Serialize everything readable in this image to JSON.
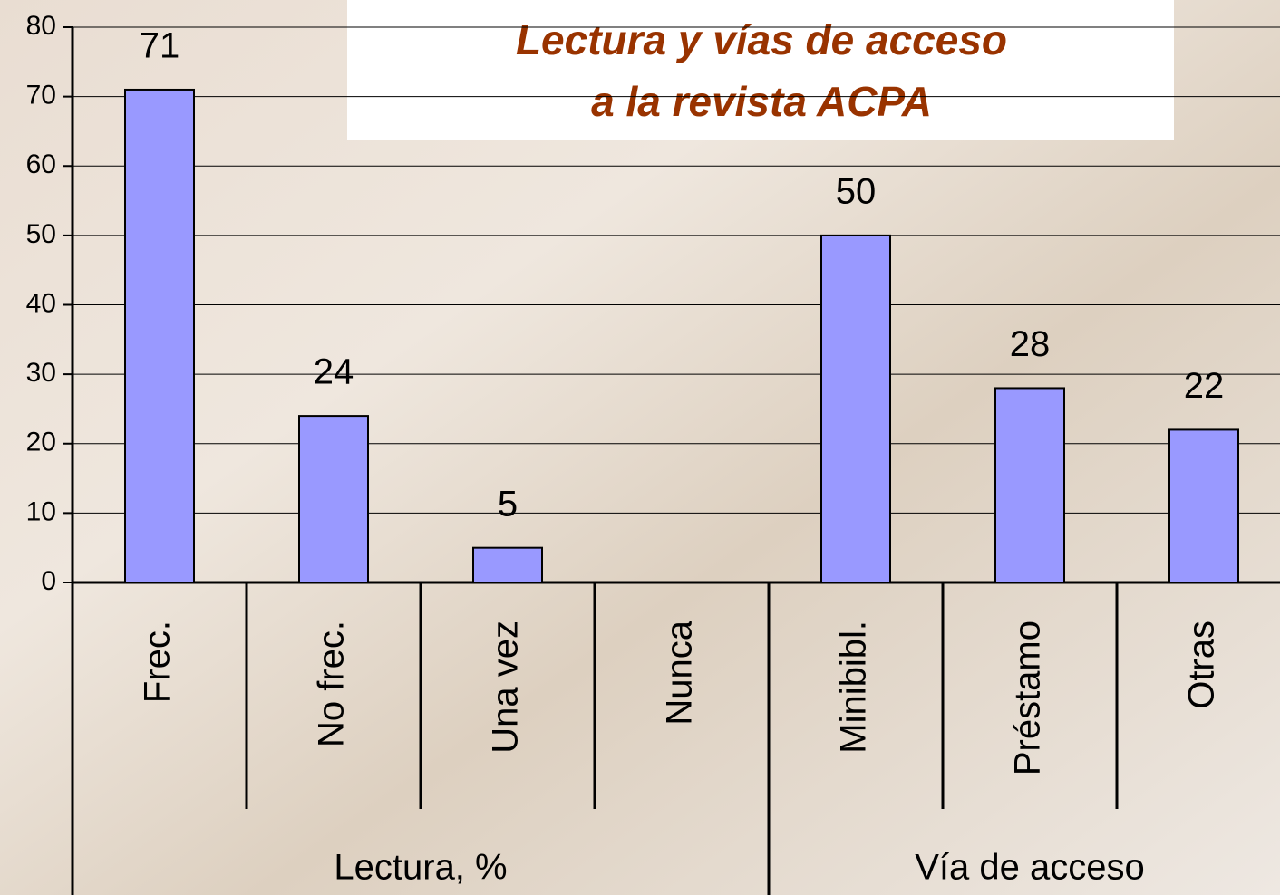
{
  "chart_data": {
    "type": "bar",
    "title": [
      "Lectura y vías de acceso",
      "a la revista ACPA"
    ],
    "groups": [
      {
        "label": "Lectura, %",
        "categories": [
          "Frec.",
          "No frec.",
          "Una vez",
          "Nunca"
        ],
        "values": [
          71,
          24,
          5,
          null
        ]
      },
      {
        "label": "Vía de acceso",
        "categories": [
          "Minibibl.",
          "Préstamo",
          "Otras"
        ],
        "values": [
          50,
          28,
          22
        ]
      }
    ],
    "color": "#9999ff",
    "ylim": [
      0,
      80
    ],
    "yticks": [
      0,
      10,
      20,
      30,
      40,
      50,
      60,
      70,
      80
    ],
    "grid": true
  }
}
